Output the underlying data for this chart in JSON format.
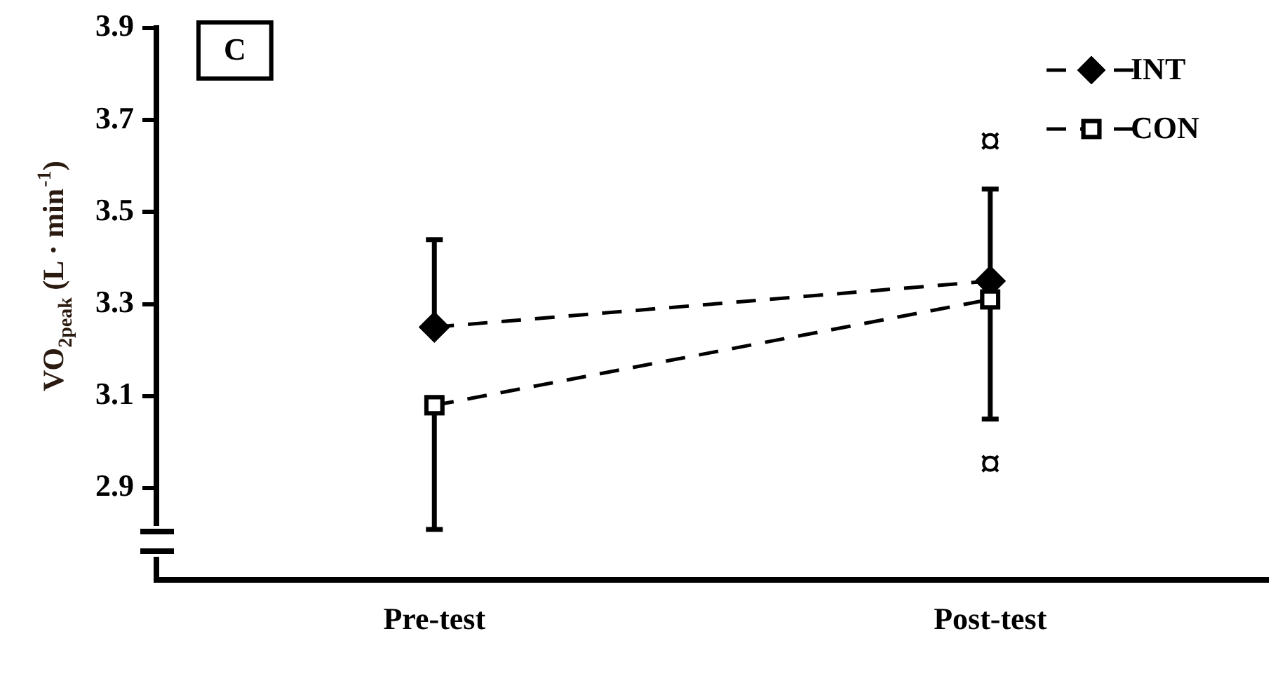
{
  "chart_data": {
    "type": "line",
    "ylabel": "VO$_{2peak}$ (L · min$^{-1}$)",
    "categories": [
      "Pre-test",
      "Post-test"
    ],
    "series": [
      {
        "name": "INT",
        "color": "#000000",
        "marker": "diamond",
        "values": [
          3.25,
          3.35
        ],
        "errors": [
          [
            3.25,
            3.44
          ],
          [
            3.35,
            3.55
          ]
        ]
      },
      {
        "name": "CON",
        "color": "#000000",
        "marker": "square",
        "values": [
          3.08,
          3.31
        ],
        "errors": [
          [
            2.81,
            3.08
          ],
          [
            3.05,
            3.31
          ]
        ]
      }
    ],
    "line_style": "dashed",
    "ylim": [
      2.7,
      3.9
    ],
    "yticks": [
      2.9,
      3.1,
      3.3,
      3.5,
      3.7,
      3.9
    ],
    "grid": false,
    "legend": "top right",
    "annotations": [
      "C",
      "¤",
      "¤"
    ]
  }
}
